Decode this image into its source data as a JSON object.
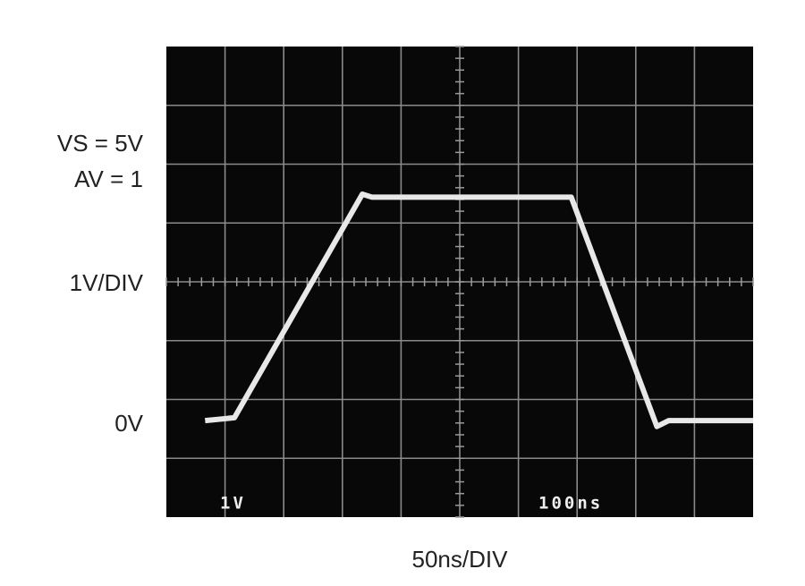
{
  "chart_data": {
    "type": "line",
    "annotations": {
      "supply": "VS = 5V",
      "gain": "AV = 1",
      "vertical_scale": "1V/DIV",
      "zero_label": "0V",
      "horizontal_scale": "50ns/DIV",
      "screen_volts": "1V",
      "screen_time": "100ns"
    },
    "x": [
      33,
      58,
      167,
      175,
      345,
      418,
      428,
      500
    ],
    "series": [
      {
        "color": "#e8e8e8",
        "values": [
          0,
          0.05,
          3.85,
          3.8,
          3.8,
          -0.1,
          0,
          0
        ]
      }
    ],
    "xlim": [
      0,
      500
    ],
    "ylim": [
      -1.64,
      6.36
    ]
  }
}
